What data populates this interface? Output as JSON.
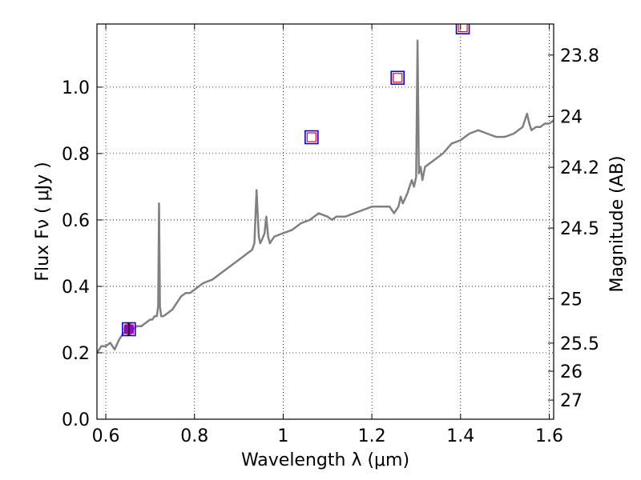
{
  "chart_data": {
    "type": "line",
    "xlabel": "Wavelength  λ (μm)",
    "ylabel": "Flux  Fν ( μJy )",
    "y2label": "Magnitude (AB)",
    "xlim": [
      0.58,
      1.61
    ],
    "ylim": [
      0.0,
      1.19
    ],
    "grid": true,
    "x_ticks": [
      0.6,
      0.8,
      1.0,
      1.2,
      1.4,
      1.6
    ],
    "x_tick_labels": [
      "0.6",
      "0.8",
      "1",
      "1.2",
      "1.4",
      "1.6"
    ],
    "y_ticks": [
      0.0,
      0.2,
      0.4,
      0.6,
      0.8,
      1.0
    ],
    "y_tick_labels": [
      "0.0",
      "0.2",
      "0.4",
      "0.6",
      "0.8",
      "1.0"
    ],
    "mag_ticks": [
      23.8,
      24,
      24.2,
      24.5,
      25,
      25.5,
      26,
      27
    ],
    "mag_tick_labels": [
      "23.8",
      "24",
      "24.2",
      "24.5",
      "25",
      "25.5",
      "26",
      "27"
    ],
    "colors": {
      "spectrum": "#808080",
      "model_marker": "#0000ff",
      "observed_marker": "#ff0000",
      "detection_fill": "#9900cc",
      "errorbar": "#000000"
    },
    "series": [
      {
        "kind": "spectrum",
        "x": [
          0.58,
          0.59,
          0.6,
          0.61,
          0.62,
          0.63,
          0.64,
          0.65,
          0.66,
          0.67,
          0.68,
          0.69,
          0.7,
          0.705,
          0.71,
          0.715,
          0.718,
          0.72,
          0.722,
          0.725,
          0.73,
          0.74,
          0.75,
          0.76,
          0.77,
          0.78,
          0.79,
          0.8,
          0.82,
          0.84,
          0.86,
          0.88,
          0.9,
          0.91,
          0.92,
          0.93,
          0.935,
          0.94,
          0.945,
          0.948,
          0.952,
          0.958,
          0.962,
          0.966,
          0.97,
          0.975,
          0.98,
          1.0,
          1.02,
          1.04,
          1.06,
          1.08,
          1.1,
          1.11,
          1.12,
          1.14,
          1.16,
          1.18,
          1.2,
          1.22,
          1.24,
          1.25,
          1.26,
          1.265,
          1.27,
          1.28,
          1.285,
          1.29,
          1.295,
          1.3,
          1.303,
          1.306,
          1.31,
          1.314,
          1.32,
          1.34,
          1.36,
          1.38,
          1.4,
          1.42,
          1.44,
          1.46,
          1.48,
          1.5,
          1.52,
          1.54,
          1.55,
          1.555,
          1.56,
          1.57,
          1.58,
          1.59,
          1.6,
          1.61
        ],
        "y": [
          0.2,
          0.22,
          0.22,
          0.23,
          0.21,
          0.24,
          0.26,
          0.26,
          0.27,
          0.28,
          0.28,
          0.29,
          0.3,
          0.3,
          0.31,
          0.31,
          0.34,
          0.65,
          0.34,
          0.31,
          0.31,
          0.32,
          0.33,
          0.35,
          0.37,
          0.38,
          0.38,
          0.39,
          0.41,
          0.42,
          0.44,
          0.46,
          0.48,
          0.49,
          0.5,
          0.51,
          0.53,
          0.69,
          0.55,
          0.53,
          0.54,
          0.56,
          0.61,
          0.55,
          0.53,
          0.54,
          0.55,
          0.56,
          0.57,
          0.59,
          0.6,
          0.62,
          0.61,
          0.6,
          0.61,
          0.61,
          0.62,
          0.63,
          0.64,
          0.64,
          0.64,
          0.62,
          0.64,
          0.67,
          0.65,
          0.68,
          0.7,
          0.72,
          0.7,
          0.73,
          1.14,
          0.74,
          0.76,
          0.72,
          0.76,
          0.78,
          0.8,
          0.83,
          0.84,
          0.86,
          0.87,
          0.86,
          0.85,
          0.85,
          0.86,
          0.88,
          0.92,
          0.89,
          0.87,
          0.88,
          0.88,
          0.89,
          0.89,
          0.9
        ]
      },
      {
        "kind": "model_photometry",
        "x": [
          0.652,
          1.064,
          1.258,
          1.405
        ],
        "y": [
          0.271,
          0.849,
          1.028,
          1.18
        ]
      },
      {
        "kind": "observed_photometry",
        "x": [
          0.652,
          1.064,
          1.258,
          1.405
        ],
        "y": [
          0.271,
          0.849,
          1.028,
          1.18
        ]
      },
      {
        "kind": "detection",
        "x": [
          0.652
        ],
        "y": [
          0.271
        ],
        "yerr": [
          0.018
        ]
      }
    ]
  }
}
